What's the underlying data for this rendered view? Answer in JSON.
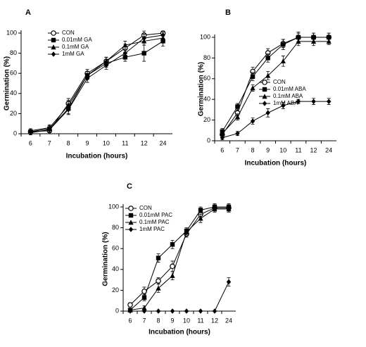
{
  "chart_data": [
    {
      "type": "line",
      "label": "A",
      "y_label": "Germination (%)",
      "x_label": "Incubation (hours)",
      "categories": [
        "6",
        "7",
        "8",
        "9",
        "10",
        "11",
        "12",
        "24"
      ],
      "ylim": [
        0,
        100
      ],
      "yticks": [
        0,
        20,
        40,
        60,
        80,
        100
      ],
      "series": [
        {
          "name": "CON",
          "color": "#000000",
          "marker": "circle-open",
          "values": [
            2,
            3,
            30,
            60,
            72,
            85,
            98,
            100
          ],
          "errors": [
            2,
            3,
            5,
            4,
            4,
            4,
            4,
            2
          ]
        },
        {
          "name": "0.01mM GA",
          "color": "#000000",
          "marker": "square",
          "values": [
            2,
            5,
            25,
            58,
            70,
            76,
            80,
            92
          ],
          "errors": [
            2,
            3,
            5,
            4,
            4,
            4,
            8,
            5
          ]
        },
        {
          "name": "0.1mM GA",
          "color": "#000000",
          "marker": "triangle",
          "values": [
            3,
            6,
            28,
            58,
            72,
            88,
            92,
            95
          ],
          "errors": [
            2,
            3,
            5,
            4,
            4,
            4,
            4,
            3
          ]
        },
        {
          "name": "1mM GA",
          "color": "#000000",
          "marker": "diamond",
          "values": [
            1,
            4,
            24,
            55,
            68,
            80,
            95,
            98
          ],
          "errors": [
            2,
            3,
            5,
            4,
            4,
            4,
            4,
            3
          ]
        }
      ]
    },
    {
      "type": "line",
      "label": "B",
      "y_label": "Germination (%)",
      "x_label": "Incubation (hours)",
      "categories": [
        "6",
        "7",
        "8",
        "9",
        "10",
        "11",
        "12",
        "24"
      ],
      "ylim": [
        0,
        100
      ],
      "yticks": [
        0,
        20,
        40,
        60,
        80,
        100
      ],
      "series": [
        {
          "name": "CON",
          "color": "#000000",
          "marker": "circle-open",
          "values": [
            6,
            27,
            67,
            85,
            94,
            100,
            100,
            100
          ],
          "errors": [
            3,
            3,
            4,
            4,
            4,
            4,
            4,
            4
          ]
        },
        {
          "name": "0.01mM ABA",
          "color": "#000000",
          "marker": "square",
          "values": [
            9,
            33,
            62,
            80,
            93,
            100,
            100,
            100
          ],
          "errors": [
            3,
            3,
            4,
            4,
            5,
            5,
            4,
            4
          ]
        },
        {
          "name": "0.1mM ABA",
          "color": "#000000",
          "marker": "triangle",
          "values": [
            7,
            23,
            51,
            63,
            77,
            96,
            96,
            96
          ],
          "errors": [
            3,
            3,
            3,
            4,
            5,
            4,
            4,
            3
          ]
        },
        {
          "name": "1mM ABA",
          "color": "#000000",
          "marker": "diamond",
          "values": [
            3,
            7,
            19,
            27,
            34,
            38,
            38,
            38
          ],
          "errors": [
            2,
            2,
            3,
            4,
            3,
            2,
            3,
            3
          ]
        }
      ]
    },
    {
      "type": "line",
      "label": "C",
      "y_label": "Germination (%)",
      "x_label": "Incubation (hours)",
      "categories": [
        "6",
        "7",
        "8",
        "9",
        "10",
        "11",
        "12",
        "24"
      ],
      "ylim": [
        0,
        100
      ],
      "yticks": [
        0,
        20,
        40,
        60,
        80,
        100
      ],
      "series": [
        {
          "name": "CON",
          "color": "#000000",
          "marker": "circle-open",
          "values": [
            6,
            19,
            29,
            43,
            74,
            93,
            99,
            99
          ],
          "errors": [
            2,
            4,
            3,
            5,
            3,
            3,
            3,
            3
          ]
        },
        {
          "name": "0.01mM PAC",
          "color": "#000000",
          "marker": "square",
          "values": [
            1,
            13,
            51,
            64,
            77,
            97,
            100,
            100
          ],
          "errors": [
            1,
            3,
            4,
            4,
            3,
            3,
            3,
            3
          ]
        },
        {
          "name": "0.1mM PAC",
          "color": "#000000",
          "marker": "triangle",
          "values": [
            1,
            3,
            22,
            34,
            76,
            89,
            98,
            98
          ],
          "errors": [
            1,
            2,
            4,
            4,
            3,
            4,
            3,
            3
          ]
        },
        {
          "name": "1mM PAC",
          "color": "#000000",
          "marker": "diamond",
          "values": [
            0,
            0,
            0,
            0,
            0,
            0,
            0,
            28
          ],
          "errors": [
            0,
            0,
            0,
            0,
            0,
            0,
            0,
            4
          ]
        }
      ]
    }
  ]
}
